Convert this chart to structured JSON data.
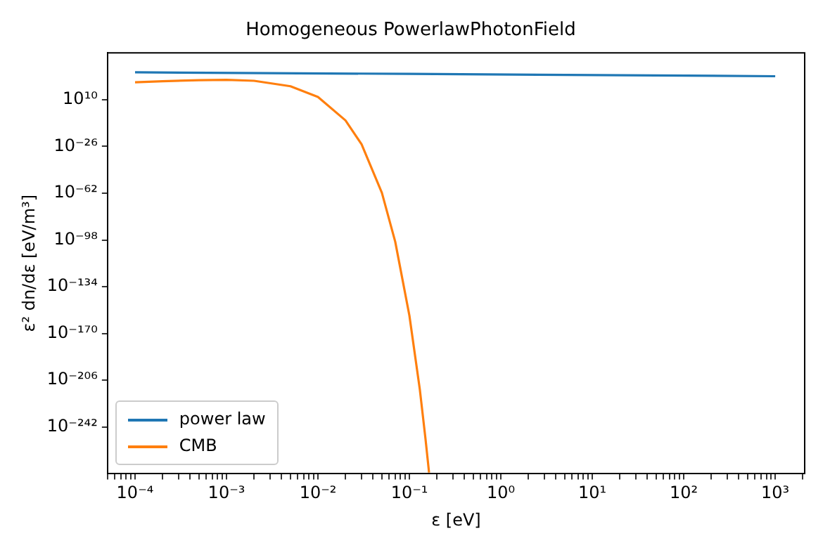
{
  "chart_data": {
    "type": "line",
    "title": "Homogeneous PowerlawPhotonField",
    "xlabel": "ε [eV]",
    "ylabel": "ε² dn/dε [eV/m³]",
    "log": "xy",
    "grid": false,
    "legend": "bottom left",
    "xlim": [
      5e-05,
      2100.0
    ],
    "xticks": [
      {
        "value": 5e-05,
        "label": null
      },
      {
        "value": 6e-05,
        "label": null
      },
      {
        "value": 7e-05,
        "label": null
      },
      {
        "value": 8e-05,
        "label": null
      },
      {
        "value": 9e-05,
        "label": null
      },
      {
        "value": 0.0001,
        "label": "10⁻⁴"
      },
      {
        "value": 0.0002,
        "label": null
      },
      {
        "value": 0.0003,
        "label": null
      },
      {
        "value": 0.0004,
        "label": null
      },
      {
        "value": 0.0005,
        "label": null
      },
      {
        "value": 0.0006,
        "label": null
      },
      {
        "value": 0.0007,
        "label": null
      },
      {
        "value": 0.0008,
        "label": null
      },
      {
        "value": 0.0009,
        "label": null
      },
      {
        "value": 0.001,
        "label": "10⁻³"
      },
      {
        "value": 0.002,
        "label": null
      },
      {
        "value": 0.003,
        "label": null
      },
      {
        "value": 0.004,
        "label": null
      },
      {
        "value": 0.005,
        "label": null
      },
      {
        "value": 0.006,
        "label": null
      },
      {
        "value": 0.007,
        "label": null
      },
      {
        "value": 0.008,
        "label": null
      },
      {
        "value": 0.009,
        "label": null
      },
      {
        "value": 0.01,
        "label": "10⁻²"
      },
      {
        "value": 0.02,
        "label": null
      },
      {
        "value": 0.03,
        "label": null
      },
      {
        "value": 0.04,
        "label": null
      },
      {
        "value": 0.05,
        "label": null
      },
      {
        "value": 0.06,
        "label": null
      },
      {
        "value": 0.07,
        "label": null
      },
      {
        "value": 0.08,
        "label": null
      },
      {
        "value": 0.09,
        "label": null
      },
      {
        "value": 0.1,
        "label": "10⁻¹"
      },
      {
        "value": 0.2,
        "label": null
      },
      {
        "value": 0.3,
        "label": null
      },
      {
        "value": 0.4,
        "label": null
      },
      {
        "value": 0.5,
        "label": null
      },
      {
        "value": 0.6,
        "label": null
      },
      {
        "value": 0.7,
        "label": null
      },
      {
        "value": 0.8,
        "label": null
      },
      {
        "value": 0.9,
        "label": null
      },
      {
        "value": 1,
        "label": "10⁰"
      },
      {
        "value": 2,
        "label": null
      },
      {
        "value": 3,
        "label": null
      },
      {
        "value": 4,
        "label": null
      },
      {
        "value": 5,
        "label": null
      },
      {
        "value": 6,
        "label": null
      },
      {
        "value": 7,
        "label": null
      },
      {
        "value": 8,
        "label": null
      },
      {
        "value": 9,
        "label": null
      },
      {
        "value": 10,
        "label": "10¹"
      },
      {
        "value": 20,
        "label": null
      },
      {
        "value": 30,
        "label": null
      },
      {
        "value": 40,
        "label": null
      },
      {
        "value": 50,
        "label": null
      },
      {
        "value": 60,
        "label": null
      },
      {
        "value": 70,
        "label": null
      },
      {
        "value": 80,
        "label": null
      },
      {
        "value": 90,
        "label": null
      },
      {
        "value": 100,
        "label": "10²"
      },
      {
        "value": 200,
        "label": null
      },
      {
        "value": 300,
        "label": null
      },
      {
        "value": 400,
        "label": null
      },
      {
        "value": 500,
        "label": null
      },
      {
        "value": 600,
        "label": null
      },
      {
        "value": 700,
        "label": null
      },
      {
        "value": 800,
        "label": null
      },
      {
        "value": 900,
        "label": null
      },
      {
        "value": 1000,
        "label": "10³"
      },
      {
        "value": 2000,
        "label": null
      }
    ],
    "ylim": [
      1e-278,
      1e+46
    ],
    "yticks": [
      {
        "value": 10000000000.0,
        "label": "10¹⁰"
      },
      {
        "value": 1e-26,
        "label": "10⁻²⁶"
      },
      {
        "value": 1e-62,
        "label": "10⁻⁶²"
      },
      {
        "value": 1e-98,
        "label": "10⁻⁹⁸"
      },
      {
        "value": 1e-134,
        "label": "10⁻¹³⁴"
      },
      {
        "value": 1e-170,
        "label": "10⁻¹⁷⁰"
      },
      {
        "value": 1e-206,
        "label": "10⁻²⁰⁶"
      },
      {
        "value": 1e-242,
        "label": "10⁻²⁴²"
      }
    ],
    "series": [
      {
        "name": "power law",
        "color": "#1f77b4",
        "x": [
          0.0001,
          0.1,
          1000
        ],
        "values": [
          1e+31,
          6e+29,
          1e+28
        ]
      },
      {
        "name": "CMB",
        "color": "#ff7f0e",
        "x": [
          0.0001,
          0.0002,
          0.0005,
          0.001,
          0.002,
          0.005,
          0.01,
          0.02,
          0.03,
          0.05,
          0.07,
          0.1,
          0.13,
          0.15,
          0.164
        ],
        "values": [
          2.4e+23,
          1.5e+24,
          1e+25,
          1.6e+25,
          3e+24,
          2e+20,
          1000000000000.0,
          1e-06,
          4e-25,
          2e-62,
          4e-100,
          6e-157,
          8e-214,
          6e-252,
          1e-277
        ]
      }
    ]
  }
}
